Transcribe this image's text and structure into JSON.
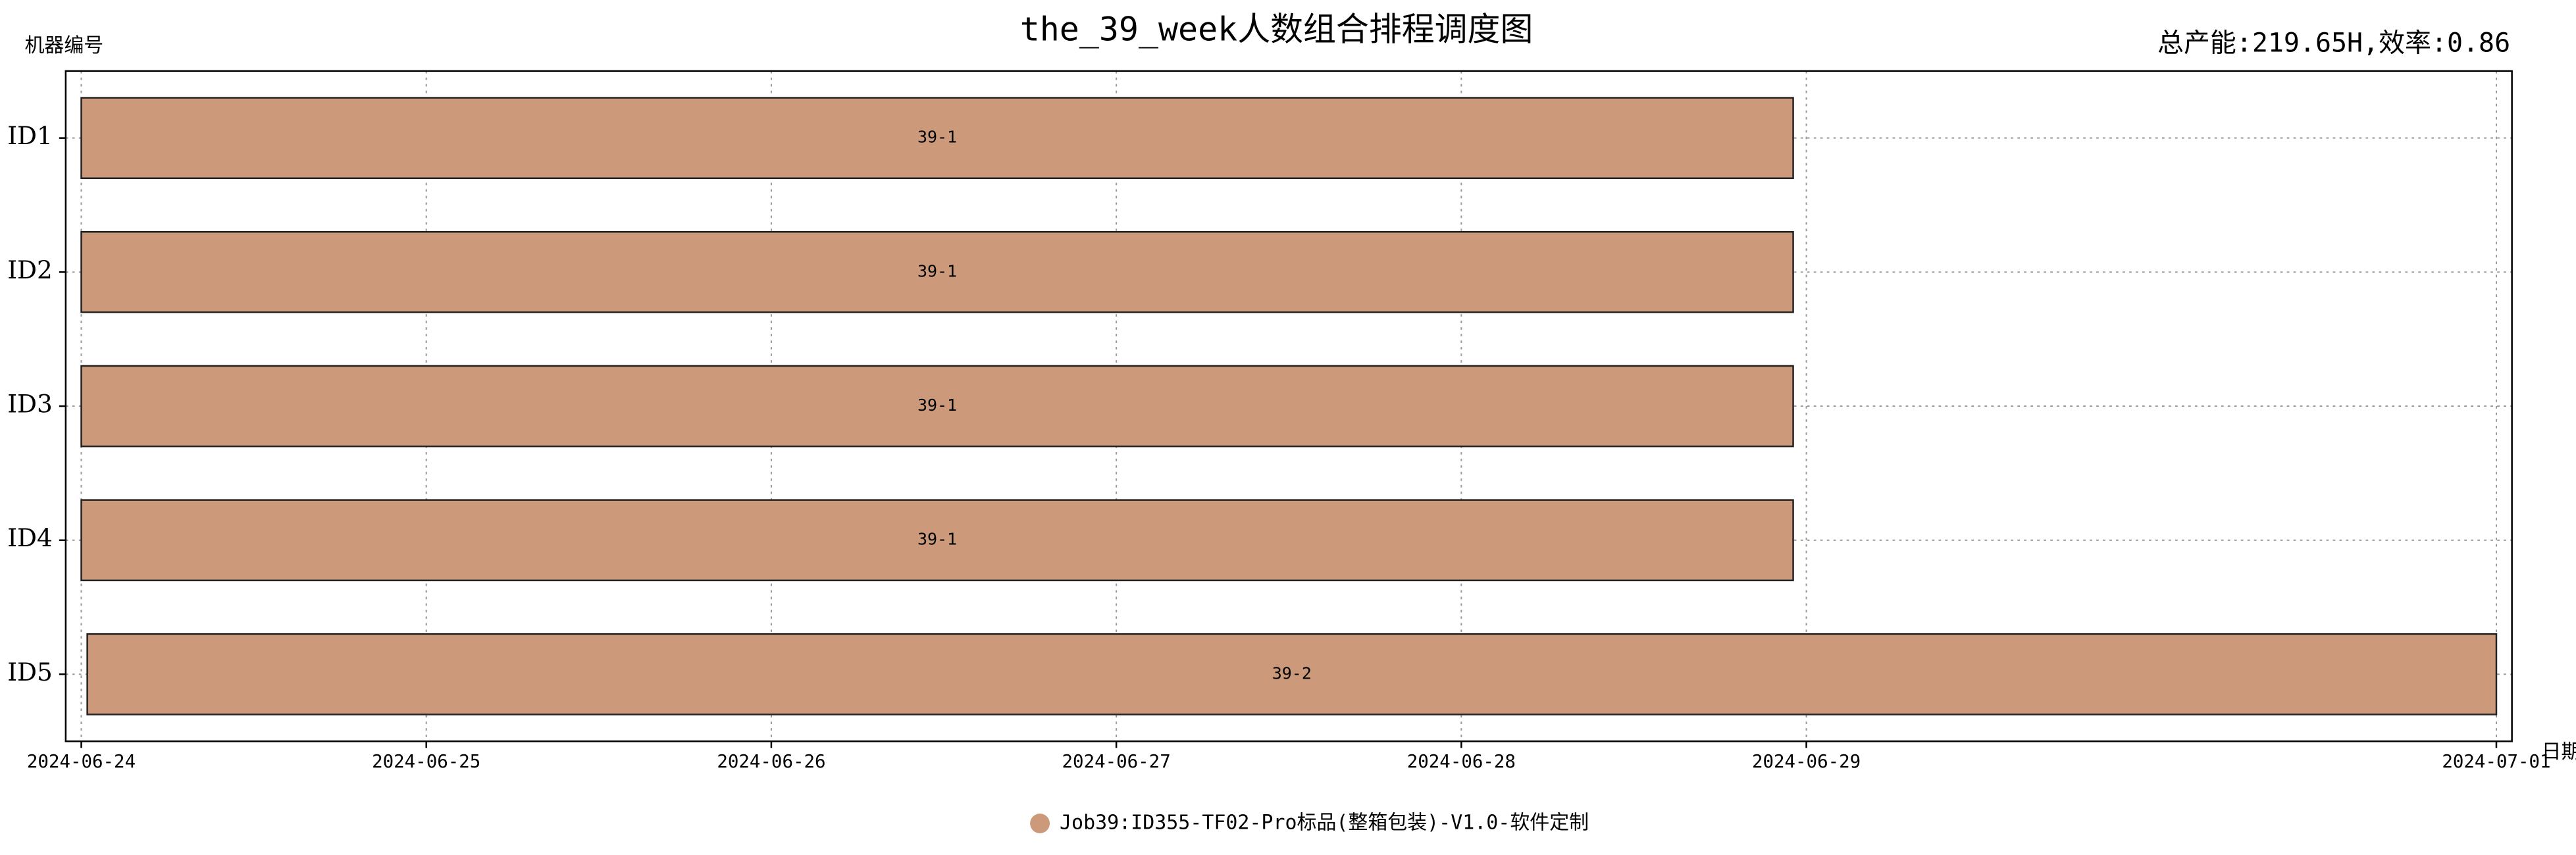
{
  "chart_data": {
    "type": "gantt",
    "title": "the_39_week人数组合排程调度图",
    "annotation": "总产能:219.65H,效率:0.86",
    "y_label": "机器编号",
    "x_label": "日期",
    "categories": [
      "ID1",
      "ID2",
      "ID3",
      "ID4",
      "ID5"
    ],
    "series": [
      {
        "name": "Job39:ID355-TF02-Pro标品(整箱包装)-V1.0-软件定制",
        "color": "#cc9a7b",
        "starts": [
          "2024-06-24T00:00",
          "2024-06-24T00:00",
          "2024-06-24T00:00",
          "2024-06-24T00:00",
          "2024-06-24T00:25"
        ],
        "ends": [
          "2024-06-28T23:05",
          "2024-06-28T23:05",
          "2024-06-28T23:05",
          "2024-06-28T23:05",
          "2024-07-01T00:00"
        ],
        "labels": [
          "39-1",
          "39-1",
          "39-1",
          "39-1",
          "39-2"
        ]
      }
    ],
    "xlim": [
      "2024-06-23T22:55",
      "2024-07-01T01:05"
    ],
    "xticks": [
      "2024-06-24",
      "2024-06-25",
      "2024-06-26",
      "2024-06-27",
      "2024-06-28",
      "2024-06-29",
      "2024-07-01"
    ],
    "grid": true,
    "legend": "bottom"
  }
}
